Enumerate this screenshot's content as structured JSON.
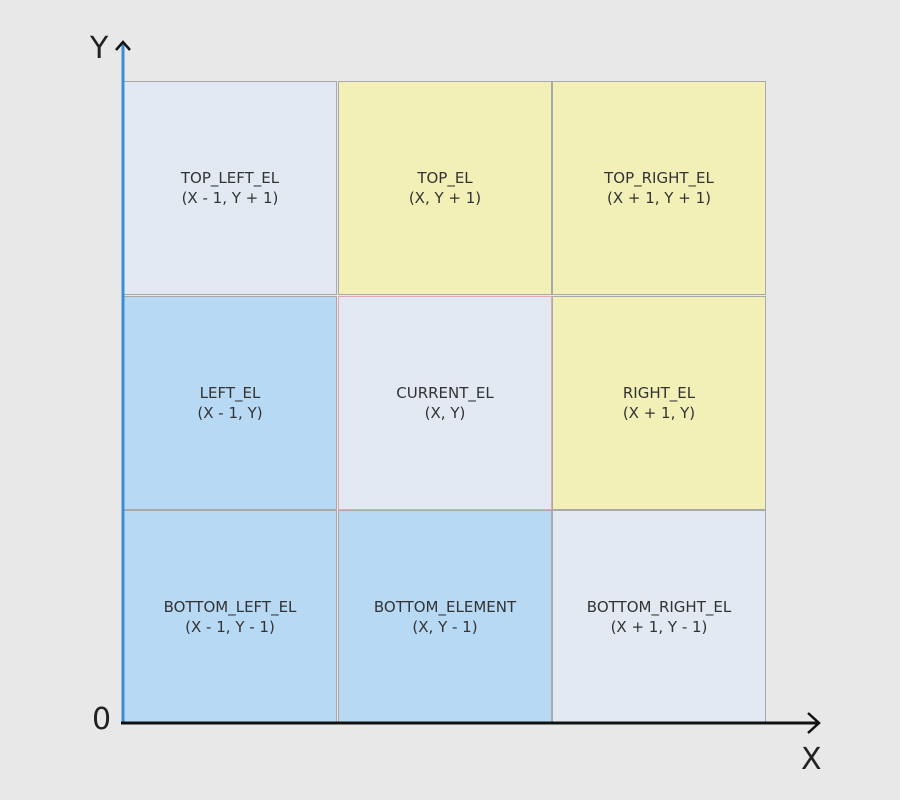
{
  "axes": {
    "y_label": "Y",
    "x_label": "X",
    "origin_label": "0",
    "y_axis_color": "#3b8ed6",
    "x_axis_color": "#111111"
  },
  "colors": {
    "light": "#e2e9f3",
    "yellow": "#f2f0b6",
    "blue": "#b8d9f4",
    "border": "#a9a9a9",
    "highlight_border": "#e6a8b0"
  },
  "grid": {
    "rows": [
      [
        {
          "name": "TOP_LEFT_EL",
          "coord": "(X - 1, Y + 1)",
          "color": "light"
        },
        {
          "name": "TOP_EL",
          "coord": "(X, Y + 1)",
          "color": "yellow"
        },
        {
          "name": "TOP_RIGHT_EL",
          "coord": "(X + 1, Y + 1)",
          "color": "yellow"
        }
      ],
      [
        {
          "name": "LEFT_EL",
          "coord": "(X - 1, Y)",
          "color": "blue"
        },
        {
          "name": "CURRENT_EL",
          "coord": "(X, Y)",
          "color": "light",
          "highlight": true
        },
        {
          "name": "RIGHT_EL",
          "coord": "(X + 1, Y)",
          "color": "yellow"
        }
      ],
      [
        {
          "name": "BOTTOM_LEFT_EL",
          "coord": "(X - 1, Y - 1)",
          "color": "blue"
        },
        {
          "name": "BOTTOM_ELEMENT",
          "coord": "(X, Y - 1)",
          "color": "blue"
        },
        {
          "name": "BOTTOM_RIGHT_EL",
          "coord": "(X + 1, Y - 1)",
          "color": "light"
        }
      ]
    ]
  }
}
